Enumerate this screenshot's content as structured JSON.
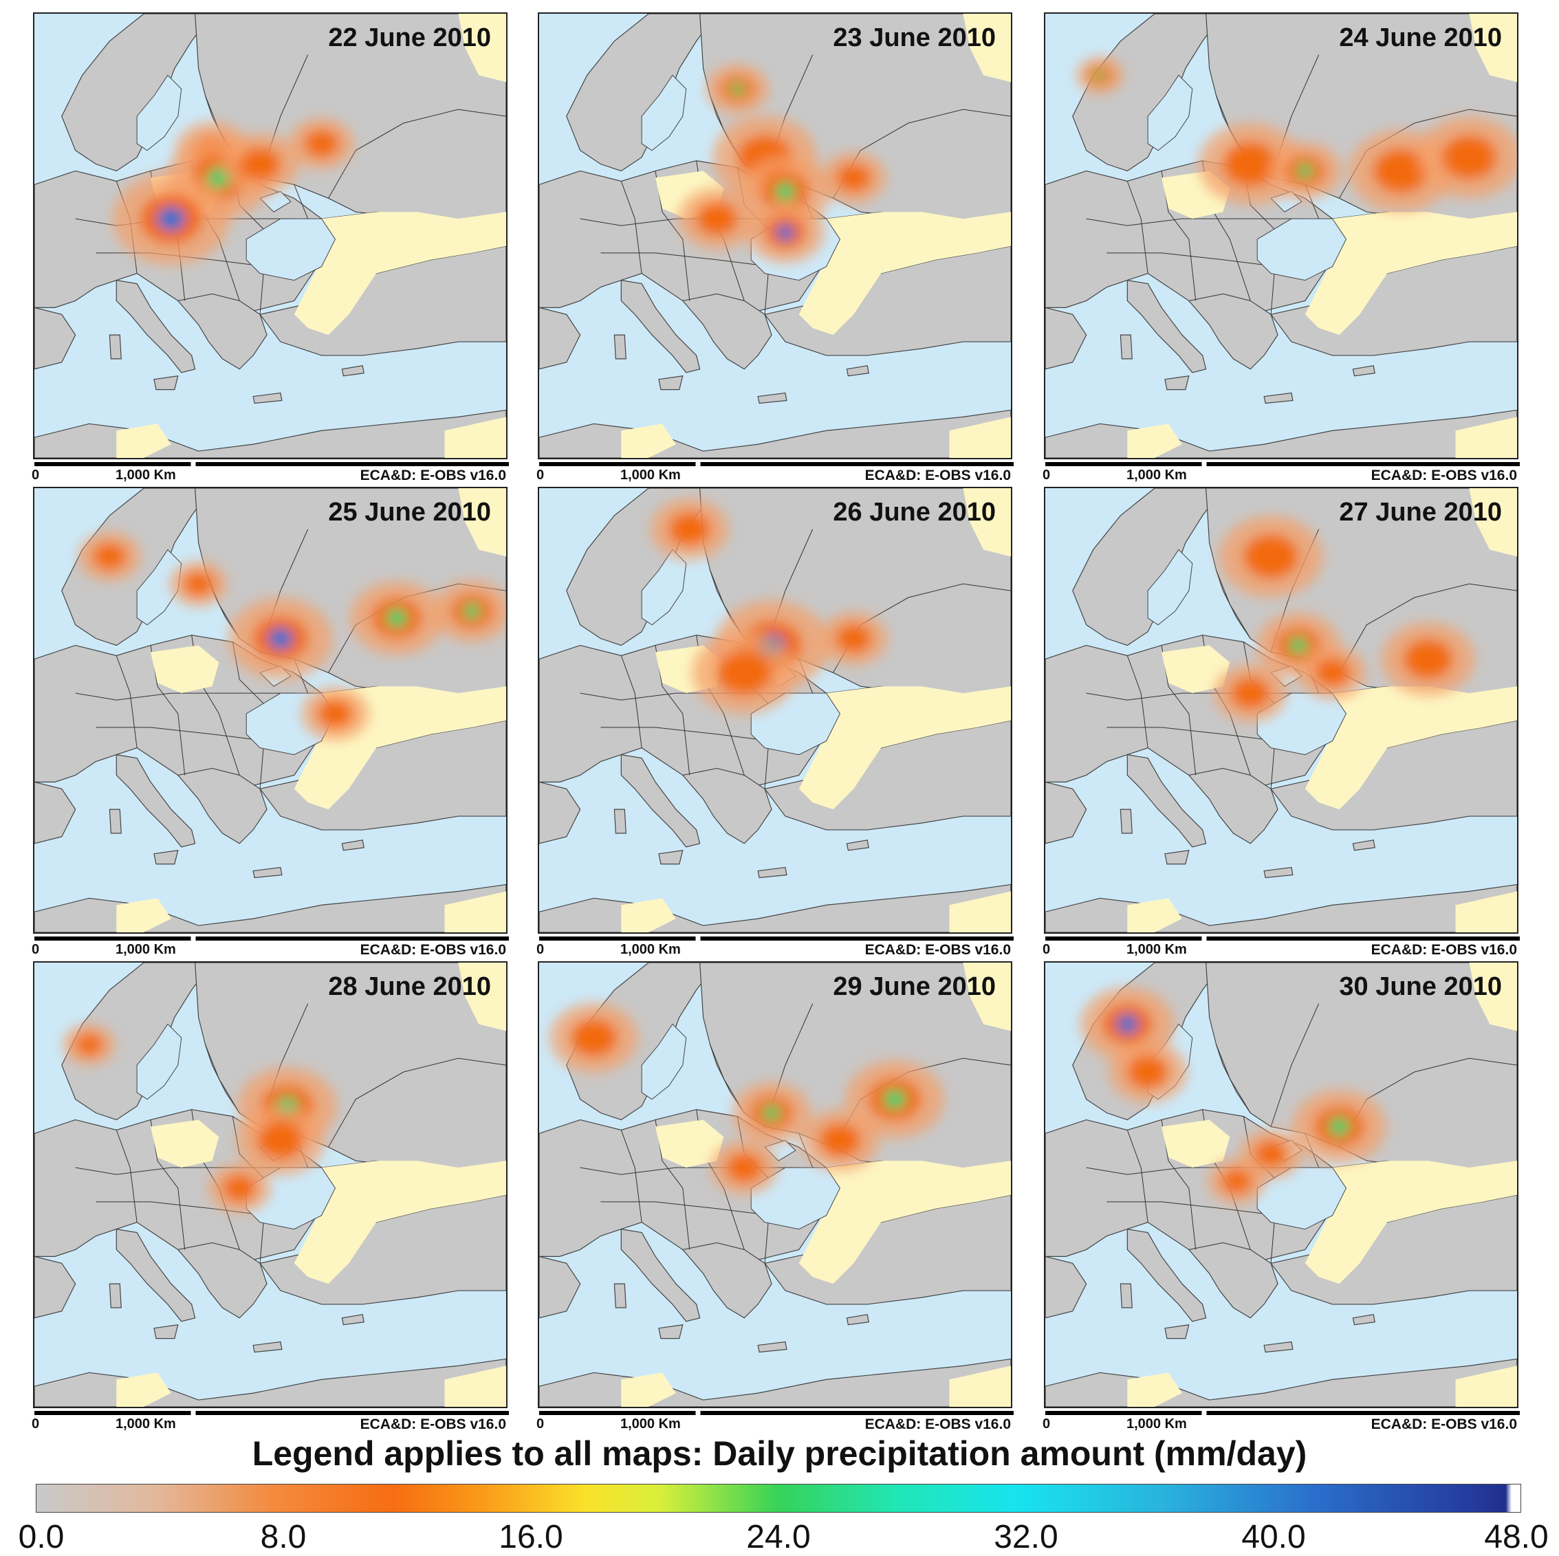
{
  "panels": [
    {
      "date": "22 June 2010",
      "scale_zero": "0",
      "scale_label": "1,000 Km",
      "source": "ECA&D: E-OBS v16.0"
    },
    {
      "date": "23 June 2010",
      "scale_zero": "0",
      "scale_label": "1,000 Km",
      "source": "ECA&D: E-OBS v16.0"
    },
    {
      "date": "24 June 2010",
      "scale_zero": "0",
      "scale_label": "1,000 Km",
      "source": "ECA&D: E-OBS v16.0"
    },
    {
      "date": "25 June 2010",
      "scale_zero": "0",
      "scale_label": "1,000 Km",
      "source": "ECA&D: E-OBS v16.0"
    },
    {
      "date": "26 June 2010",
      "scale_zero": "0",
      "scale_label": "1,000 Km",
      "source": "ECA&D: E-OBS v16.0"
    },
    {
      "date": "27 June 2010",
      "scale_zero": "0",
      "scale_label": "1,000 Km",
      "source": "ECA&D: E-OBS v16.0"
    },
    {
      "date": "28 June 2010",
      "scale_zero": "0",
      "scale_label": "1,000 Km",
      "source": "ECA&D: E-OBS v16.0"
    },
    {
      "date": "29 June 2010",
      "scale_zero": "0",
      "scale_label": "1,000 Km",
      "source": "ECA&D: E-OBS v16.0"
    },
    {
      "date": "30 June 2010",
      "scale_zero": "0",
      "scale_label": "1,000 Km",
      "source": "ECA&D: E-OBS v16.0"
    }
  ],
  "legend": {
    "title": "Legend applies to all maps: Daily precipitation amount (mm/day)",
    "ticks": [
      "0.0",
      "8.0",
      "16.0",
      "24.0",
      "32.0",
      "40.0",
      "48.0"
    ],
    "min": 0,
    "max": 48
  },
  "colors": {
    "sea": "#cde9f8",
    "land": "#c8c8c8",
    "no_data": "#fdf6c3",
    "light_rain": "#f4a06a",
    "moderate_rain": "#f26a10",
    "heavy_rain": "#1fd06a",
    "extreme_rain": "#1f6fcf"
  }
}
